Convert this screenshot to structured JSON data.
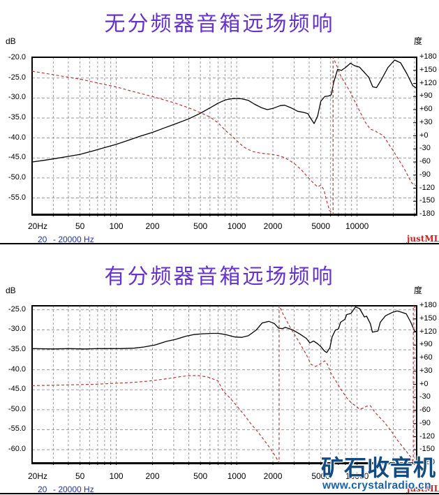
{
  "watermark": {
    "logo_text": "矿石收音机",
    "url_text": "www.crystalradio.cn",
    "logo_color": "#134b80",
    "url_color": "#1a62a5"
  },
  "colors": {
    "title": "#6633cc",
    "magnitude": "#000000",
    "phase": "#b43c3c",
    "grid": "#9a9a9a",
    "status_text": "#2233aa",
    "brand": "#cc2222"
  },
  "chart_data": [
    {
      "type": "line",
      "title": "无分频器音箱远场频响",
      "brand": "justMLS",
      "status": {
        "left": "20",
        "range": "- 20000 Hz"
      },
      "x_axis": {
        "scale": "log",
        "min": 20,
        "max": 31250,
        "tick_labels": [
          "20Hz",
          "50",
          "100",
          "200",
          "500",
          "1000",
          "2000",
          "5000",
          "10000"
        ],
        "tick_values": [
          20,
          50,
          100,
          200,
          500,
          1000,
          2000,
          5000,
          10000
        ]
      },
      "y_left": {
        "unit_label": "dB",
        "top_value": -19.8,
        "bottom_value": -59.1,
        "tick_labels": [
          "-20.0",
          "-25.0",
          "-30.0",
          "-35.0",
          "-40.0",
          "-45.0",
          "-50.0",
          "-55.0"
        ],
        "tick_values": [
          -20,
          -25,
          -30,
          -35,
          -40,
          -45,
          -50,
          -55
        ]
      },
      "y_right": {
        "unit_label": "度",
        "top_value": 180,
        "bottom_value": -180,
        "tick_labels": [
          "+180",
          "+150",
          "+120",
          "+90",
          "+60",
          "+30",
          "+0",
          "-30",
          "-60",
          "-90",
          "-120",
          "-150",
          "-180"
        ],
        "tick_values": [
          180,
          150,
          120,
          90,
          60,
          30,
          0,
          -30,
          -60,
          -90,
          -120,
          -150,
          -180
        ]
      },
      "series": [
        {
          "name": "magnitude",
          "axis": "left",
          "style": "solid",
          "color": "#000000",
          "points": [
            [
              20,
              -46
            ],
            [
              25,
              -45.6
            ],
            [
              32,
              -45.1
            ],
            [
              40,
              -44.6
            ],
            [
              50,
              -44.1
            ],
            [
              63,
              -43.3
            ],
            [
              80,
              -42.4
            ],
            [
              100,
              -41.6
            ],
            [
              125,
              -40.6
            ],
            [
              160,
              -39.5
            ],
            [
              200,
              -38.6
            ],
            [
              250,
              -37.5
            ],
            [
              315,
              -36.4
            ],
            [
              400,
              -35.2
            ],
            [
              500,
              -33.8
            ],
            [
              630,
              -32.1
            ],
            [
              700,
              -31.3
            ],
            [
              800,
              -30.5
            ],
            [
              900,
              -30.2
            ],
            [
              1000,
              -30.1
            ],
            [
              1100,
              -30.2
            ],
            [
              1250,
              -30.6
            ],
            [
              1400,
              -31.5
            ],
            [
              1600,
              -32.4
            ],
            [
              1800,
              -32.9
            ],
            [
              2000,
              -32.6
            ],
            [
              2300,
              -31.9
            ],
            [
              2500,
              -31.8
            ],
            [
              2800,
              -32.4
            ],
            [
              3200,
              -33.3
            ],
            [
              3600,
              -33.6
            ],
            [
              3900,
              -33.9
            ],
            [
              4100,
              -35
            ],
            [
              4400,
              -36.4
            ],
            [
              4700,
              -34.5
            ],
            [
              5000,
              -30.8
            ],
            [
              5400,
              -29.6
            ],
            [
              5800,
              -29.5
            ],
            [
              6100,
              -29.2
            ],
            [
              6400,
              -26
            ],
            [
              6900,
              -22.8
            ],
            [
              7400,
              -23.1
            ],
            [
              8000,
              -22.4
            ],
            [
              8800,
              -21.3
            ],
            [
              9500,
              -21.9
            ],
            [
              10500,
              -22.3
            ],
            [
              11500,
              -23.6
            ],
            [
              12500,
              -24.8
            ],
            [
              13500,
              -27.2
            ],
            [
              14500,
              -27.4
            ],
            [
              16000,
              -25.3
            ],
            [
              18000,
              -22.4
            ],
            [
              20500,
              -20.5
            ],
            [
              23000,
              -21.2
            ],
            [
              26000,
              -24
            ],
            [
              29000,
              -26.9
            ],
            [
              31000,
              -27.5
            ]
          ]
        },
        {
          "name": "phase",
          "axis": "right",
          "style": "dashed",
          "color": "#b43c3c",
          "points": [
            [
              20,
              148
            ],
            [
              30,
              140
            ],
            [
              50,
              130
            ],
            [
              70,
              121
            ],
            [
              100,
              112
            ],
            [
              140,
              101
            ],
            [
              200,
              90
            ],
            [
              300,
              76
            ],
            [
              400,
              64
            ],
            [
              500,
              53
            ],
            [
              600,
              43
            ],
            [
              700,
              30
            ],
            [
              800,
              13
            ],
            [
              900,
              1
            ],
            [
              1000,
              -11
            ],
            [
              1150,
              -26
            ],
            [
              1350,
              -36
            ],
            [
              1600,
              -40
            ],
            [
              1900,
              -42
            ],
            [
              2200,
              -45
            ],
            [
              2500,
              -50
            ],
            [
              3000,
              -63
            ],
            [
              3500,
              -80
            ],
            [
              4000,
              -98
            ],
            [
              4400,
              -110
            ],
            [
              4700,
              -117
            ],
            [
              5000,
              -113
            ],
            [
              5300,
              -124
            ],
            [
              5600,
              -150
            ],
            [
              5900,
              -171
            ],
            [
              6320,
              -180
            ],
            [
              6320,
              180
            ],
            [
              6800,
              160
            ],
            [
              7300,
              138
            ],
            [
              8000,
              119
            ],
            [
              8800,
              100
            ],
            [
              9700,
              76
            ],
            [
              10700,
              52
            ],
            [
              11700,
              31
            ],
            [
              12900,
              15
            ],
            [
              14000,
              12
            ],
            [
              14900,
              7
            ],
            [
              16500,
              1
            ],
            [
              18100,
              -17
            ],
            [
              19800,
              -33
            ],
            [
              21500,
              -49
            ],
            [
              24700,
              -76
            ],
            [
              28400,
              -108
            ],
            [
              31000,
              -115
            ]
          ]
        }
      ]
    },
    {
      "type": "line",
      "title": "有分频器音箱远场频响",
      "brand": "justMLS",
      "status": {
        "left": "20",
        "range": "- 20000 Hz"
      },
      "x_axis": {
        "scale": "log",
        "min": 20,
        "max": 31250,
        "tick_labels": [
          "20Hz",
          "50",
          "100",
          "200",
          "500",
          "1000",
          "2000",
          "5000",
          "10000"
        ],
        "tick_values": [
          20,
          50,
          100,
          200,
          500,
          1000,
          2000,
          5000,
          10000
        ]
      },
      "y_left": {
        "unit_label": "dB",
        "top_value": -24.0,
        "bottom_value": -63.3,
        "tick_labels": [
          "-25.0",
          "-30.0",
          "-35.0",
          "-40.0",
          "-45.0",
          "-50.0",
          "-55.0",
          "-60.0"
        ],
        "tick_values": [
          -25,
          -30,
          -35,
          -40,
          -45,
          -50,
          -55,
          -60
        ]
      },
      "y_right": {
        "unit_label": "度",
        "top_value": 180,
        "bottom_value": -180,
        "tick_labels": [
          "+180",
          "+150",
          "+120",
          "+90",
          "+60",
          "+30",
          "+0",
          "-30",
          "-60",
          "-90",
          "-120",
          "-150",
          "-180"
        ],
        "tick_values": [
          180,
          150,
          120,
          90,
          60,
          30,
          0,
          -30,
          -60,
          -90,
          -120,
          -150,
          -180
        ]
      },
      "series": [
        {
          "name": "magnitude",
          "axis": "left",
          "style": "solid",
          "color": "#000000",
          "points": [
            [
              20,
              -34.7
            ],
            [
              30,
              -34.8
            ],
            [
              40,
              -34.7
            ],
            [
              55,
              -34.8
            ],
            [
              70,
              -34.7
            ],
            [
              90,
              -34.7
            ],
            [
              110,
              -34.7
            ],
            [
              140,
              -34.6
            ],
            [
              170,
              -34.3
            ],
            [
              210,
              -33.8
            ],
            [
              260,
              -32.9
            ],
            [
              310,
              -32.4
            ],
            [
              380,
              -31.6
            ],
            [
              440,
              -31.2
            ],
            [
              520,
              -31
            ],
            [
              630,
              -30.9
            ],
            [
              700,
              -30.9
            ],
            [
              810,
              -31.2
            ],
            [
              970,
              -31.8
            ],
            [
              1100,
              -31.9
            ],
            [
              1250,
              -31.5
            ],
            [
              1450,
              -30.1
            ],
            [
              1630,
              -28.3
            ],
            [
              1850,
              -27.9
            ],
            [
              2050,
              -28.4
            ],
            [
              2230,
              -29.6
            ],
            [
              2400,
              -29.7
            ],
            [
              2540,
              -29.4
            ],
            [
              2950,
              -30.1
            ],
            [
              3400,
              -31.2
            ],
            [
              3800,
              -32.2
            ],
            [
              4050,
              -33.3
            ],
            [
              4350,
              -32.8
            ],
            [
              4650,
              -33.4
            ],
            [
              5000,
              -34.2
            ],
            [
              5350,
              -35.3
            ],
            [
              5600,
              -35.7
            ],
            [
              5950,
              -34.5
            ],
            [
              6200,
              -31.8
            ],
            [
              6600,
              -30.1
            ],
            [
              7000,
              -29.8
            ],
            [
              7300,
              -28.1
            ],
            [
              7900,
              -27.4
            ],
            [
              8200,
              -26.2
            ],
            [
              8900,
              -25.9
            ],
            [
              9700,
              -24.3
            ],
            [
              10500,
              -24.7
            ],
            [
              11500,
              -26.8
            ],
            [
              12000,
              -26.6
            ],
            [
              12900,
              -28.5
            ],
            [
              13400,
              -30.6
            ],
            [
              14900,
              -30.3
            ],
            [
              15600,
              -28.1
            ],
            [
              17200,
              -26.5
            ],
            [
              19800,
              -25.6
            ],
            [
              21500,
              -25.3
            ],
            [
              23500,
              -25.6
            ],
            [
              25600,
              -26
            ],
            [
              28000,
              -28.2
            ],
            [
              30000,
              -30.3
            ],
            [
              31000,
              -30.5
            ]
          ]
        },
        {
          "name": "phase",
          "axis": "right",
          "style": "dashed",
          "color": "#b43c3c",
          "points": [
            [
              20,
              -3
            ],
            [
              30,
              -2
            ],
            [
              45,
              -1
            ],
            [
              65,
              0
            ],
            [
              90,
              2
            ],
            [
              130,
              4
            ],
            [
              180,
              7
            ],
            [
              250,
              12
            ],
            [
              330,
              17
            ],
            [
              400,
              20
            ],
            [
              480,
              20
            ],
            [
              570,
              17
            ],
            [
              700,
              8
            ],
            [
              770,
              -15
            ],
            [
              880,
              -31
            ],
            [
              1000,
              -49
            ],
            [
              1140,
              -68
            ],
            [
              1300,
              -89
            ],
            [
              1490,
              -108
            ],
            [
              1700,
              -129
            ],
            [
              1950,
              -151
            ],
            [
              2140,
              -169
            ],
            [
              2250,
              -180
            ],
            [
              2250,
              180
            ],
            [
              2290,
              177
            ],
            [
              2430,
              161
            ],
            [
              2800,
              129
            ],
            [
              3250,
              100
            ],
            [
              3760,
              70
            ],
            [
              4150,
              46
            ],
            [
              4470,
              41
            ],
            [
              4800,
              44
            ],
            [
              5100,
              50
            ],
            [
              5400,
              54
            ],
            [
              5700,
              45
            ],
            [
              6000,
              28
            ],
            [
              6350,
              17
            ],
            [
              6800,
              4
            ],
            [
              7300,
              -10
            ],
            [
              8200,
              -31
            ],
            [
              9000,
              -43
            ],
            [
              9700,
              -49
            ],
            [
              10500,
              -57
            ],
            [
              11300,
              -54
            ],
            [
              12000,
              -50
            ],
            [
              12900,
              -49
            ],
            [
              14000,
              -63
            ],
            [
              15200,
              -74
            ],
            [
              16500,
              -84
            ],
            [
              19000,
              -105
            ],
            [
              21500,
              -127
            ],
            [
              24700,
              -148
            ],
            [
              28400,
              -169
            ],
            [
              29300,
              -180
            ],
            [
              29300,
              180
            ],
            [
              30500,
              175
            ],
            [
              31000,
              173
            ]
          ]
        }
      ]
    }
  ]
}
